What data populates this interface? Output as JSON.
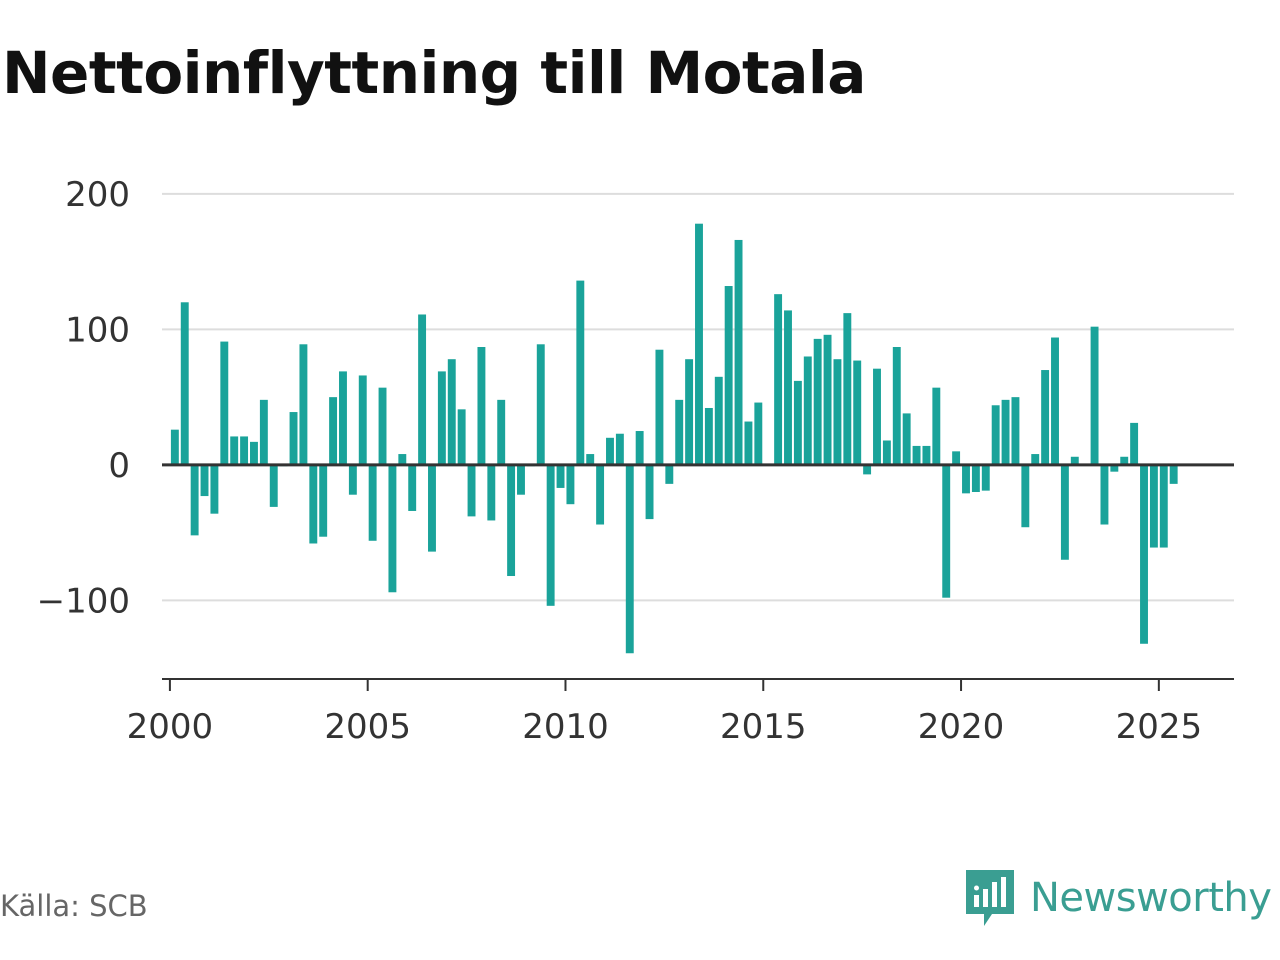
{
  "title": "Nettoinflyttning till Motala",
  "source": "Källa: SCB",
  "brand": {
    "name": "Newsworthy",
    "icon": "newsworthy-logo-icon",
    "color": "#3a9e92"
  },
  "chart_data": {
    "type": "bar",
    "xlim": [
      1999.8,
      2026.9
    ],
    "ylim": [
      -158,
      225
    ],
    "y_ticks": [
      {
        "value": 200,
        "label": "200"
      },
      {
        "value": 100,
        "label": "100"
      },
      {
        "value": 0,
        "label": "0"
      },
      {
        "value": -100,
        "label": "−100"
      }
    ],
    "x_ticks": [
      {
        "value": 2000,
        "label": "2000"
      },
      {
        "value": 2005,
        "label": "2005"
      },
      {
        "value": 2010,
        "label": "2010"
      },
      {
        "value": 2015,
        "label": "2015"
      },
      {
        "value": 2020,
        "label": "2020"
      },
      {
        "value": 2025,
        "label": "2025"
      }
    ],
    "grid": true,
    "bar_color": "#1aa39a",
    "zero_line_color": "#333333",
    "grid_color": "#dddddd",
    "series": [
      {
        "periods": "quarterly, 2000 Q1 – 2025 Q3",
        "x": [
          2000.125,
          2000.375,
          2000.625,
          2000.875,
          2001.125,
          2001.375,
          2001.625,
          2001.875,
          2002.125,
          2002.375,
          2002.625,
          2002.875,
          2003.125,
          2003.375,
          2003.625,
          2003.875,
          2004.125,
          2004.375,
          2004.625,
          2004.875,
          2005.125,
          2005.375,
          2005.625,
          2005.875,
          2006.125,
          2006.375,
          2006.625,
          2006.875,
          2007.125,
          2007.375,
          2007.625,
          2007.875,
          2008.125,
          2008.375,
          2008.625,
          2008.875,
          2009.125,
          2009.375,
          2009.625,
          2009.875,
          2010.125,
          2010.375,
          2010.625,
          2010.875,
          2011.125,
          2011.375,
          2011.625,
          2011.875,
          2012.125,
          2012.375,
          2012.625,
          2012.875,
          2013.125,
          2013.375,
          2013.625,
          2013.875,
          2014.125,
          2014.375,
          2014.625,
          2014.875,
          2015.125,
          2015.375,
          2015.625,
          2015.875,
          2016.125,
          2016.375,
          2016.625,
          2016.875,
          2017.125,
          2017.375,
          2017.625,
          2017.875,
          2018.125,
          2018.375,
          2018.625,
          2018.875,
          2019.125,
          2019.375,
          2019.625,
          2019.875,
          2020.125,
          2020.375,
          2020.625,
          2020.875,
          2021.125,
          2021.375,
          2021.625,
          2021.875,
          2022.125,
          2022.375,
          2022.625,
          2022.875,
          2023.125,
          2023.375,
          2023.625,
          2023.875,
          2024.125,
          2024.375,
          2024.625,
          2024.875,
          2025.125,
          2025.375,
          2025.625
        ],
        "values": [
          26,
          120,
          -52,
          -23,
          -36,
          91,
          21,
          21,
          17,
          48,
          -31,
          -1,
          39,
          89,
          -58,
          -53,
          50,
          69,
          -22,
          66,
          -56,
          57,
          -94,
          8,
          -34,
          111,
          -64,
          69,
          78,
          41,
          -38,
          87,
          -41,
          48,
          -82,
          -22,
          -1,
          89,
          -104,
          -17,
          -29,
          136,
          8,
          -44,
          20,
          23,
          -139,
          25,
          -40,
          85,
          -14,
          48,
          78,
          178,
          42,
          65,
          132,
          166,
          32,
          46,
          0,
          126,
          114,
          62,
          80,
          93,
          96,
          78,
          112,
          77,
          -7,
          71,
          18,
          87,
          38,
          14,
          14,
          57,
          -98,
          10,
          -21,
          -20,
          -19,
          44,
          48,
          50,
          -46,
          8,
          70,
          94,
          -70,
          6,
          0,
          102,
          -44,
          -5,
          6,
          31,
          -132,
          -61,
          -61,
          -14,
          0
        ]
      }
    ]
  }
}
